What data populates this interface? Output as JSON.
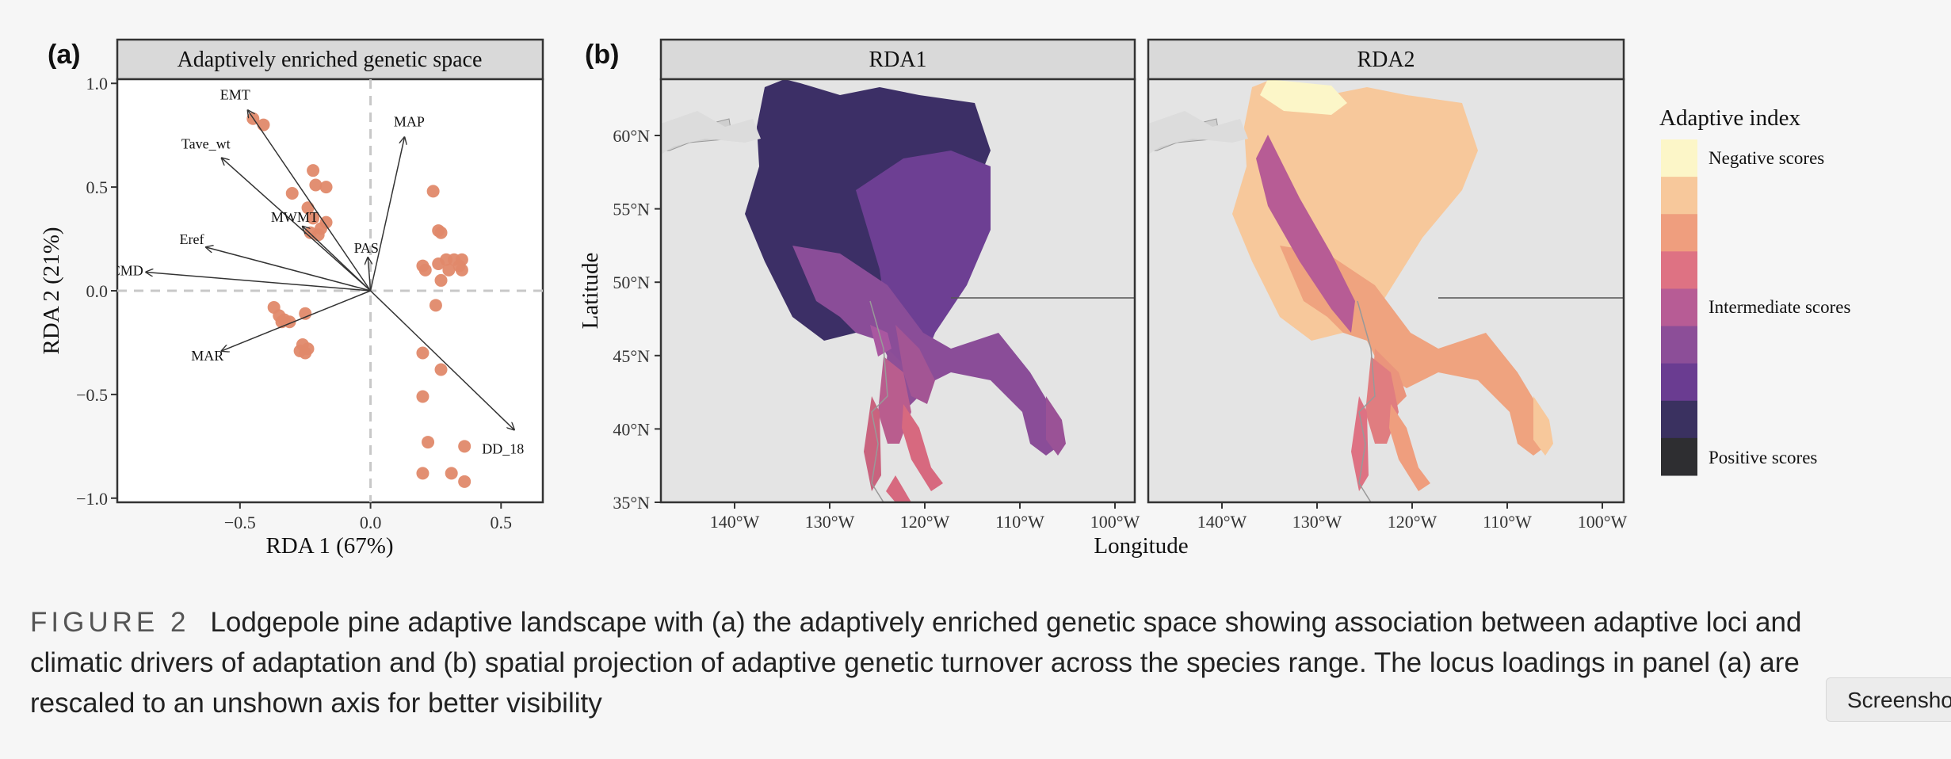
{
  "chart_data": [
    {
      "panel": "(a)",
      "type": "scatter",
      "title": "Adaptively enriched genetic space",
      "xlabel": "RDA 1 (67%)",
      "ylabel": "RDA 2 (21%)",
      "xlim": [
        -0.97,
        0.66
      ],
      "ylim": [
        -1.02,
        1.02
      ],
      "xticks": [
        {
          "v": -0.5,
          "label": "−0.5"
        },
        {
          "v": 0.0,
          "label": "0.0"
        },
        {
          "v": 0.5,
          "label": "0.5"
        }
      ],
      "yticks": [
        {
          "v": -1.0,
          "label": "−1.0"
        },
        {
          "v": -0.5,
          "label": "−0.5"
        },
        {
          "v": 0.0,
          "label": "0.0"
        },
        {
          "v": 0.5,
          "label": "0.5"
        },
        {
          "v": 1.0,
          "label": "1.0"
        }
      ],
      "point_color": "#e0896a",
      "points": [
        [
          -0.45,
          0.83
        ],
        [
          -0.41,
          0.8
        ],
        [
          -0.22,
          0.58
        ],
        [
          -0.21,
          0.51
        ],
        [
          -0.17,
          0.5
        ],
        [
          -0.3,
          0.47
        ],
        [
          -0.24,
          0.4
        ],
        [
          -0.22,
          0.35
        ],
        [
          -0.17,
          0.33
        ],
        [
          -0.19,
          0.3
        ],
        [
          -0.23,
          0.28
        ],
        [
          -0.2,
          0.27
        ],
        [
          -0.37,
          -0.08
        ],
        [
          -0.35,
          -0.12
        ],
        [
          -0.33,
          -0.14
        ],
        [
          -0.31,
          -0.15
        ],
        [
          -0.34,
          -0.15
        ],
        [
          -0.25,
          -0.11
        ],
        [
          -0.26,
          -0.26
        ],
        [
          -0.27,
          -0.29
        ],
        [
          -0.24,
          -0.28
        ],
        [
          -0.25,
          -0.3
        ],
        [
          0.24,
          0.48
        ],
        [
          0.26,
          0.29
        ],
        [
          0.27,
          0.28
        ],
        [
          0.2,
          0.12
        ],
        [
          0.21,
          0.1
        ],
        [
          0.26,
          0.13
        ],
        [
          0.29,
          0.15
        ],
        [
          0.32,
          0.15
        ],
        [
          0.35,
          0.15
        ],
        [
          0.3,
          0.1
        ],
        [
          0.34,
          0.12
        ],
        [
          0.35,
          0.1
        ],
        [
          0.27,
          0.05
        ],
        [
          0.25,
          -0.07
        ],
        [
          0.2,
          -0.3
        ],
        [
          0.27,
          -0.38
        ],
        [
          0.2,
          -0.51
        ],
        [
          0.22,
          -0.73
        ],
        [
          0.36,
          -0.75
        ],
        [
          0.2,
          -0.88
        ],
        [
          0.31,
          -0.88
        ],
        [
          0.36,
          -0.92
        ]
      ],
      "arrows": [
        {
          "name": "EMT",
          "x": -0.47,
          "y": 0.87
        },
        {
          "name": "Tave_wt",
          "x": -0.57,
          "y": 0.64
        },
        {
          "name": "MWMT",
          "x": -0.26,
          "y": 0.31
        },
        {
          "name": "Eref",
          "x": -0.63,
          "y": 0.21
        },
        {
          "name": "CMD",
          "x": -0.86,
          "y": 0.09
        },
        {
          "name": "MAR",
          "x": -0.57,
          "y": -0.29
        },
        {
          "name": "MAP",
          "x": 0.13,
          "y": 0.74
        },
        {
          "name": "PAS",
          "x": -0.01,
          "y": 0.16
        },
        {
          "name": "DD_18",
          "x": 0.55,
          "y": -0.67
        }
      ]
    },
    {
      "panel": "(b)",
      "type": "heatmap",
      "facets": [
        "RDA1",
        "RDA2"
      ],
      "xlabel": "Longitude",
      "ylabel": "Latitude",
      "xticks": [
        "140°W",
        "130°W",
        "120°W",
        "110°W",
        "100°W"
      ],
      "yticks": [
        "35°N",
        "40°N",
        "45°N",
        "50°N",
        "55°N",
        "60°N"
      ],
      "legend_title": "Adaptive index",
      "legend_labels": [
        "Negative scores",
        "Intermediate scores",
        "Positive scores"
      ],
      "legend_colors": [
        "#fcf6c8",
        "#f7c89b",
        "#ef9e7e",
        "#de7283",
        "#b75c95",
        "#8c4e98",
        "#6a3c91",
        "#3a3160",
        "#2e2e31"
      ]
    }
  ],
  "caption": {
    "label": "FIGURE 2",
    "text": "Lodgepole pine adaptive landscape with (a) the adaptively enriched genetic space showing association between adaptive loci and climatic drivers of adaptation and (b) spatial projection of adaptive genetic turnover across the species range. The locus loadings in panel (a) are rescaled to an unshown axis for better visibility"
  },
  "screenshot_button": "Screenshot"
}
